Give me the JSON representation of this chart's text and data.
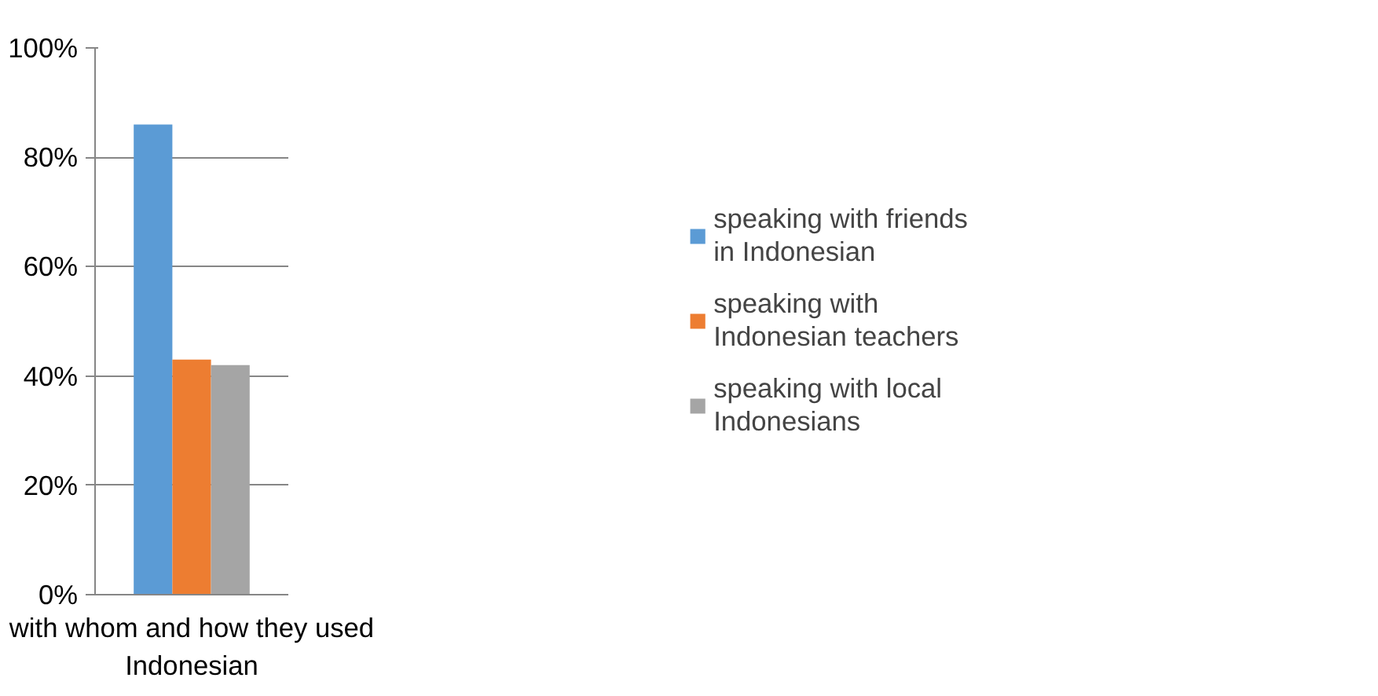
{
  "chart_data": {
    "type": "bar",
    "categories": [
      "with whom and how they used Indonesian"
    ],
    "series": [
      {
        "name": "speaking with friends in Indonesian",
        "color": "#5b9bd5",
        "values": [
          86
        ]
      },
      {
        "name": "speaking with Indonesian teachers",
        "color": "#ed7d31",
        "values": [
          43
        ]
      },
      {
        "name": "speaking with local Indonesians",
        "color": "#a5a5a5",
        "values": [
          42
        ]
      }
    ],
    "ylim": [
      0,
      100
    ],
    "yticks": [
      {
        "value": 0,
        "label": "0%"
      },
      {
        "value": 20,
        "label": "20%"
      },
      {
        "value": 40,
        "label": "40%"
      },
      {
        "value": 60,
        "label": "60%"
      },
      {
        "value": 80,
        "label": "80%"
      },
      {
        "value": 100,
        "label": "100%"
      }
    ],
    "grid": "y",
    "legend": "right"
  }
}
